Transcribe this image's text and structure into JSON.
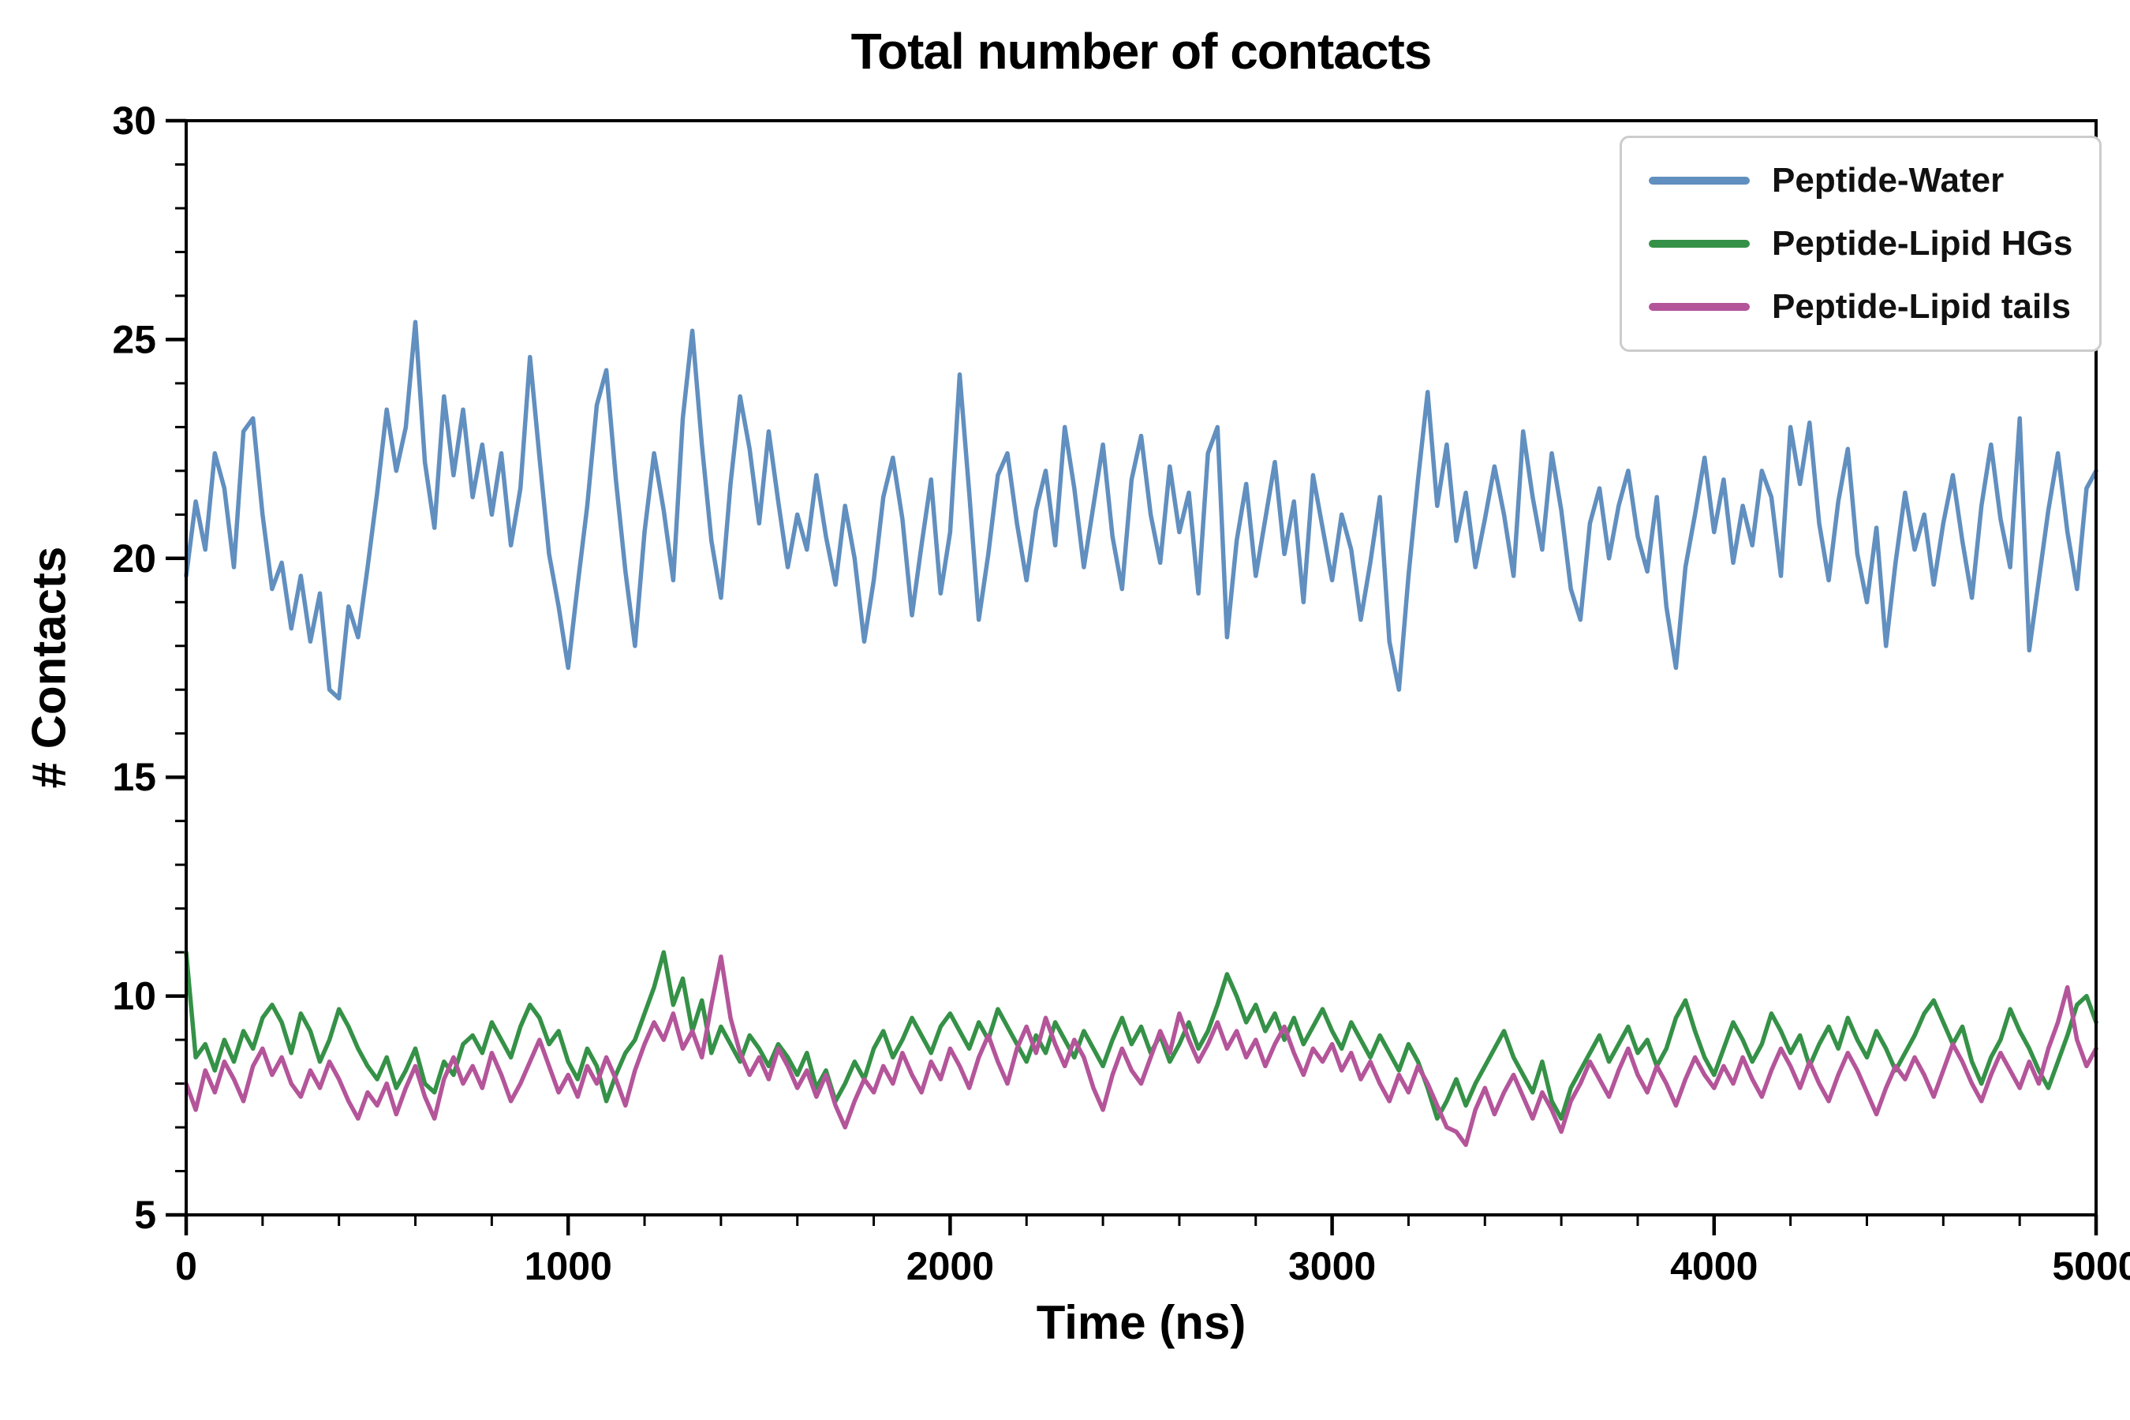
{
  "figure": {
    "title": "Total number of contacts",
    "xlabel": "Time (ns)",
    "ylabel": "# Contacts"
  },
  "chart_data": {
    "type": "line",
    "title": "Total number of contacts",
    "xlabel": "Time (ns)",
    "ylabel": "# Contacts",
    "xlim": [
      0,
      5000
    ],
    "ylim": [
      5,
      30
    ],
    "x_major_ticks": [
      0,
      1000,
      2000,
      3000,
      4000,
      5000
    ],
    "y_major_ticks": [
      5,
      10,
      15,
      20,
      25,
      30
    ],
    "x_minor_step": 200,
    "y_minor_step": 1,
    "grid": false,
    "legend_position": "upper right",
    "x_start": 0,
    "x_step": 25,
    "series": [
      {
        "name": "Peptide-Water",
        "color": "#618fbf",
        "values": [
          19.6,
          21.3,
          20.2,
          22.4,
          21.6,
          19.8,
          22.9,
          23.2,
          21.0,
          19.3,
          19.9,
          18.4,
          19.6,
          18.1,
          19.2,
          17.0,
          16.8,
          18.9,
          18.2,
          19.8,
          21.5,
          23.4,
          22.0,
          23.0,
          25.4,
          22.2,
          20.7,
          23.7,
          21.9,
          23.4,
          21.4,
          22.6,
          21.0,
          22.4,
          20.3,
          21.6,
          24.6,
          22.3,
          20.1,
          18.9,
          17.5,
          19.4,
          21.2,
          23.5,
          24.3,
          21.8,
          19.7,
          18.0,
          20.6,
          22.4,
          21.1,
          19.5,
          23.2,
          25.2,
          22.6,
          20.4,
          19.1,
          21.7,
          23.7,
          22.5,
          20.8,
          22.9,
          21.3,
          19.8,
          21.0,
          20.2,
          21.9,
          20.5,
          19.4,
          21.2,
          20.0,
          18.1,
          19.5,
          21.4,
          22.3,
          20.9,
          18.7,
          20.3,
          21.8,
          19.2,
          20.6,
          24.2,
          21.5,
          18.6,
          20.1,
          21.9,
          22.4,
          20.8,
          19.5,
          21.1,
          22.0,
          20.3,
          23.0,
          21.6,
          19.8,
          21.2,
          22.6,
          20.5,
          19.3,
          21.8,
          22.8,
          21.0,
          19.9,
          22.1,
          20.6,
          21.5,
          19.2,
          22.4,
          23.0,
          18.2,
          20.4,
          21.7,
          19.6,
          20.9,
          22.2,
          20.1,
          21.3,
          19.0,
          21.9,
          20.7,
          19.5,
          21.0,
          20.2,
          18.6,
          19.9,
          21.4,
          18.1,
          17.0,
          19.6,
          21.8,
          23.8,
          21.2,
          22.6,
          20.4,
          21.5,
          19.8,
          20.9,
          22.1,
          21.0,
          19.6,
          22.9,
          21.4,
          20.2,
          22.4,
          21.1,
          19.3,
          18.6,
          20.8,
          21.6,
          20.0,
          21.2,
          22.0,
          20.5,
          19.7,
          21.4,
          18.9,
          17.5,
          19.8,
          21.0,
          22.3,
          20.6,
          21.8,
          19.9,
          21.2,
          20.3,
          22.0,
          21.4,
          19.6,
          23.0,
          21.7,
          23.1,
          20.8,
          19.5,
          21.3,
          22.5,
          20.1,
          19.0,
          20.7,
          18.0,
          19.9,
          21.5,
          20.2,
          21.0,
          19.4,
          20.8,
          21.9,
          20.4,
          19.1,
          21.2,
          22.6,
          20.9,
          19.8,
          23.2,
          17.9,
          19.5,
          21.1,
          22.4,
          20.6,
          19.3,
          21.6,
          22.0
        ]
      },
      {
        "name": "Peptide-Lipid HGs",
        "color": "#359147",
        "values": [
          11.0,
          8.6,
          8.9,
          8.3,
          9.0,
          8.5,
          9.2,
          8.8,
          9.5,
          9.8,
          9.4,
          8.7,
          9.6,
          9.2,
          8.5,
          9.0,
          9.7,
          9.3,
          8.8,
          8.4,
          8.1,
          8.6,
          7.9,
          8.3,
          8.8,
          8.0,
          7.8,
          8.5,
          8.2,
          8.9,
          9.1,
          8.7,
          9.4,
          9.0,
          8.6,
          9.3,
          9.8,
          9.5,
          8.9,
          9.2,
          8.5,
          8.1,
          8.8,
          8.4,
          7.6,
          8.2,
          8.7,
          9.0,
          9.6,
          10.2,
          11.0,
          9.8,
          10.4,
          9.2,
          9.9,
          8.7,
          9.3,
          8.9,
          8.5,
          9.1,
          8.8,
          8.4,
          8.9,
          8.6,
          8.2,
          8.7,
          7.9,
          8.3,
          7.6,
          8.0,
          8.5,
          8.1,
          8.8,
          9.2,
          8.6,
          9.0,
          9.5,
          9.1,
          8.7,
          9.3,
          9.6,
          9.2,
          8.8,
          9.4,
          9.0,
          9.7,
          9.3,
          8.9,
          8.5,
          9.1,
          8.7,
          9.4,
          9.0,
          8.6,
          9.2,
          8.8,
          8.4,
          9.0,
          9.5,
          8.9,
          9.3,
          8.7,
          9.1,
          8.5,
          8.9,
          9.4,
          8.8,
          9.2,
          9.8,
          10.5,
          10.0,
          9.4,
          9.8,
          9.2,
          9.6,
          9.0,
          9.5,
          8.9,
          9.3,
          9.7,
          9.2,
          8.8,
          9.4,
          9.0,
          8.6,
          9.1,
          8.7,
          8.3,
          8.9,
          8.5,
          7.9,
          7.2,
          7.6,
          8.1,
          7.5,
          8.0,
          8.4,
          8.8,
          9.2,
          8.6,
          8.2,
          7.8,
          8.5,
          7.6,
          7.2,
          7.9,
          8.3,
          8.7,
          9.1,
          8.5,
          8.9,
          9.3,
          8.7,
          9.0,
          8.4,
          8.8,
          9.5,
          9.9,
          9.2,
          8.6,
          8.2,
          8.8,
          9.4,
          9.0,
          8.5,
          8.9,
          9.6,
          9.2,
          8.7,
          9.1,
          8.4,
          8.9,
          9.3,
          8.8,
          9.5,
          9.0,
          8.6,
          9.2,
          8.8,
          8.3,
          8.7,
          9.1,
          9.6,
          9.9,
          9.4,
          8.9,
          9.3,
          8.5,
          8.0,
          8.6,
          9.0,
          9.7,
          9.2,
          8.8,
          8.3,
          7.9,
          8.5,
          9.1,
          9.8,
          10.0,
          9.4
        ]
      },
      {
        "name": "Peptide-Lipid tails",
        "color": "#b4559a",
        "values": [
          8.0,
          7.4,
          8.3,
          7.8,
          8.5,
          8.1,
          7.6,
          8.4,
          8.8,
          8.2,
          8.6,
          8.0,
          7.7,
          8.3,
          7.9,
          8.5,
          8.1,
          7.6,
          7.2,
          7.8,
          7.5,
          8.0,
          7.3,
          7.9,
          8.4,
          7.7,
          7.2,
          8.1,
          8.6,
          8.0,
          8.4,
          7.9,
          8.7,
          8.2,
          7.6,
          8.0,
          8.5,
          9.0,
          8.4,
          7.8,
          8.2,
          7.7,
          8.4,
          8.0,
          8.6,
          8.1,
          7.5,
          8.3,
          8.9,
          9.4,
          9.0,
          9.6,
          8.8,
          9.2,
          8.6,
          9.8,
          10.9,
          9.5,
          8.7,
          8.2,
          8.6,
          8.1,
          8.8,
          8.4,
          7.9,
          8.3,
          7.7,
          8.2,
          7.5,
          7.0,
          7.6,
          8.1,
          7.8,
          8.4,
          8.0,
          8.7,
          8.2,
          7.8,
          8.5,
          8.1,
          8.8,
          8.4,
          7.9,
          8.6,
          9.1,
          8.5,
          8.0,
          8.8,
          9.3,
          8.7,
          9.5,
          8.9,
          8.4,
          9.0,
          8.6,
          7.9,
          7.4,
          8.2,
          8.8,
          8.3,
          8.0,
          8.6,
          9.2,
          8.7,
          9.6,
          9.0,
          8.5,
          8.9,
          9.4,
          8.8,
          9.2,
          8.6,
          9.0,
          8.4,
          8.9,
          9.3,
          8.7,
          8.2,
          8.8,
          8.5,
          8.9,
          8.3,
          8.7,
          8.1,
          8.5,
          8.0,
          7.6,
          8.2,
          7.8,
          8.4,
          8.0,
          7.5,
          7.0,
          6.9,
          6.6,
          7.4,
          7.9,
          7.3,
          7.8,
          8.2,
          7.7,
          7.2,
          7.8,
          7.4,
          6.9,
          7.6,
          8.0,
          8.5,
          8.1,
          7.7,
          8.3,
          8.8,
          8.2,
          7.8,
          8.4,
          8.0,
          7.5,
          8.1,
          8.6,
          8.2,
          7.9,
          8.4,
          8.0,
          8.6,
          8.1,
          7.7,
          8.3,
          8.8,
          8.4,
          7.9,
          8.5,
          8.0,
          7.6,
          8.2,
          8.7,
          8.3,
          7.8,
          7.3,
          7.9,
          8.4,
          8.1,
          8.6,
          8.2,
          7.7,
          8.3,
          8.9,
          8.5,
          8.0,
          7.6,
          8.2,
          8.7,
          8.3,
          7.9,
          8.5,
          8.0,
          8.8,
          9.4,
          10.2,
          9.0,
          8.4,
          8.8
        ]
      }
    ]
  }
}
